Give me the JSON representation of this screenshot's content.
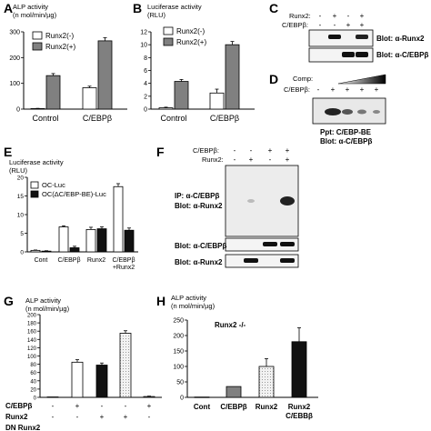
{
  "panels": {
    "A": {
      "letter": "A",
      "ylabel_line1": "ALP activity",
      "ylabel_line2": "(n mol/min/µg)",
      "legend": [
        "Runx2(-)",
        "Runx2(+)"
      ],
      "xlabels": [
        "Control",
        "C/EBPβ"
      ]
    },
    "B": {
      "letter": "B",
      "ylabel_line1": "Luciferase activity",
      "ylabel_line2": "(RLU)",
      "legend": [
        "Runx2(-)",
        "Runx2(+)"
      ],
      "xlabels": [
        "Control",
        "C/EBPβ"
      ]
    },
    "C": {
      "letter": "C",
      "row_labels": [
        "Runx2:",
        "C/EBPβ:"
      ],
      "row1_signs": [
        "-",
        "+",
        "-",
        "+"
      ],
      "row2_signs": [
        "-",
        "-",
        "+",
        "+"
      ],
      "blots": [
        "Blot: α-Runx2",
        "Blot: α-C/EBPβ"
      ]
    },
    "D": {
      "letter": "D",
      "comp_label": "Comp:",
      "cebp_label": "C/EBPβ:",
      "signs": [
        "-",
        "+",
        "+",
        "+",
        "+"
      ],
      "caption_line1": "Ppt: C/EBP-BE",
      "caption_line2": "Blot: α-C/EBPβ"
    },
    "E": {
      "letter": "E",
      "ylabel_line1": "Luciferase activity",
      "ylabel_line2": "(RLU)",
      "legend": [
        "OC-Luc",
        "OC(ΔC/EBP-BE)-Luc"
      ],
      "xlabels": [
        "Cont",
        "C/EBPβ",
        "Runx2"
      ],
      "xlabel_last_line1": "C/EBPβ",
      "xlabel_last_line2": "+Runx2"
    },
    "F": {
      "letter": "F",
      "row_labels": [
        "C/EBPβ:",
        "Runx2:"
      ],
      "row1_signs": [
        "-",
        "-",
        "+",
        "+"
      ],
      "row2_signs": [
        "-",
        "+",
        "-",
        "+"
      ],
      "ip_line1": "IP: α-C/EBPβ",
      "ip_line2": "Blot: α-Runx2",
      "blots": [
        "Blot: α-C/EBPβ",
        "Blot: α-Runx2"
      ]
    },
    "G": {
      "letter": "G",
      "ylabel_line1": "ALP activity",
      "ylabel_line2": "(n mol/min/µg)",
      "row_labels": [
        "C/EBPβ",
        "Runx2",
        "DN Runx2"
      ],
      "row1_signs": [
        "-",
        "+",
        "-",
        "-",
        "+"
      ],
      "row2_signs": [
        "-",
        "-",
        "+",
        "+",
        "-"
      ]
    },
    "H": {
      "letter": "H",
      "ylabel_line1": "ALP activity",
      "ylabel_line2": "(n mol/min/µg)",
      "note": "Runx2 -/-",
      "xlabels": [
        "Cont",
        "C/EBPβ",
        "Runx2"
      ],
      "xlabel_last_line1": "Runx2",
      "xlabel_last_line2": "C/EBBβ"
    }
  },
  "chart_data": [
    {
      "panel": "A",
      "type": "bar",
      "categories": [
        "Control",
        "C/EBPβ"
      ],
      "series": [
        {
          "name": "Runx2(-)",
          "values": [
            2,
            83
          ],
          "errors": [
            1,
            6
          ],
          "color": "#ffffff"
        },
        {
          "name": "Runx2(+)",
          "values": [
            130,
            265
          ],
          "errors": [
            8,
            12
          ],
          "color": "#808080"
        }
      ],
      "yticks": [
        0,
        100,
        200,
        300
      ],
      "ylim": [
        0,
        300
      ]
    },
    {
      "panel": "B",
      "type": "bar",
      "categories": [
        "Control",
        "C/EBPβ"
      ],
      "series": [
        {
          "name": "Runx2(-)",
          "values": [
            0.2,
            2.5
          ],
          "errors": [
            0.1,
            0.6
          ],
          "color": "#ffffff"
        },
        {
          "name": "Runx2(+)",
          "values": [
            4.3,
            10
          ],
          "errors": [
            0.3,
            0.5
          ],
          "color": "#808080"
        }
      ],
      "yticks": [
        0,
        2,
        4,
        6,
        8,
        10,
        12
      ],
      "ylim": [
        0,
        12
      ]
    },
    {
      "panel": "E",
      "type": "bar",
      "categories": [
        "Cont",
        "C/EBPβ",
        "Runx2",
        "C/EBPβ +Runx2"
      ],
      "series": [
        {
          "name": "OC-Luc",
          "values": [
            0.4,
            6.7,
            6.0,
            17.5
          ],
          "errors": [
            0.1,
            0.3,
            0.6,
            0.8
          ],
          "color": "#ffffff"
        },
        {
          "name": "OC(ΔC/EBP-BE)-Luc",
          "values": [
            0.2,
            1.1,
            6.2,
            5.8
          ],
          "errors": [
            0.1,
            0.4,
            0.5,
            0.6
          ],
          "color": "#111111"
        }
      ],
      "yticks": [
        0,
        5,
        10,
        15,
        20
      ],
      "ylim": [
        0,
        20
      ]
    },
    {
      "panel": "G",
      "type": "bar",
      "categories": [
        "1",
        "2",
        "3",
        "4",
        "5"
      ],
      "values": [
        1,
        85,
        78,
        155,
        2
      ],
      "errors": [
        0,
        6,
        5,
        6,
        1
      ],
      "colors": [
        "#ffffff",
        "#ffffff",
        "#111111",
        "#dddddd",
        "#ffffff"
      ],
      "yticks": [
        0,
        20,
        40,
        60,
        80,
        100,
        120,
        140,
        160,
        180,
        200
      ],
      "ylim": [
        0,
        200
      ]
    },
    {
      "panel": "H",
      "type": "bar",
      "categories": [
        "Cont",
        "C/EBPβ",
        "Runx2",
        "Runx2 C/EBBβ"
      ],
      "values": [
        1,
        35,
        100,
        180
      ],
      "errors": [
        0,
        0,
        25,
        45
      ],
      "colors": [
        "#ffffff",
        "#808080",
        "#dddddd",
        "#111111"
      ],
      "yticks": [
        0,
        50,
        100,
        150,
        200,
        250
      ],
      "ylim": [
        0,
        250
      ]
    }
  ]
}
